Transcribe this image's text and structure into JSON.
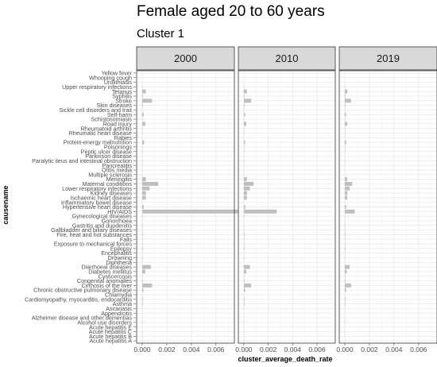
{
  "chart_data": {
    "type": "bar",
    "orientation": "horizontal",
    "title": "Female aged 20 to 60 years",
    "subtitle": "Cluster 1",
    "xlabel": "cluster_average_death_rate",
    "ylabel": "causename",
    "xlim": [
      -0.00045,
      0.0075
    ],
    "x_ticks": [
      0.0,
      0.002,
      0.004,
      0.006
    ],
    "x_tick_labels": [
      "0.000",
      "0.002",
      "0.004",
      "0.006"
    ],
    "grid": true,
    "legend": "none",
    "bar_color": "#bfbfbf",
    "facets": [
      "2000",
      "2010",
      "2019"
    ],
    "categories": [
      "Yellow fever",
      "Whooping cough",
      "Urolithiasis",
      "Upper respiratory infections",
      "Tetanus",
      "Syphilis",
      "Stroke",
      "Skin diseases",
      "Sickle cell disorders and trait",
      "Self-harm",
      "Schistosomiasis",
      "Road injury",
      "Rheumatoid arthritis",
      "Rheumatic heart disease",
      "Rabies",
      "Protein-energy malnutrition",
      "Poisonings",
      "Peptic ulcer disease",
      "Parkinson disease",
      "Paralytic ileus and intestinal obstruction",
      "Pancreatitis",
      "Otitis media",
      "Multiple sclerosis",
      "Meningitis",
      "Maternal conditions",
      "Lower respiratory infections",
      "Kidney diseases",
      "Ischaemic heart disease",
      "Inflammatory bowel disease",
      "Hypertensive heart disease",
      "HIV/AIDS",
      "Gynecological diseases",
      "Gonorrhoea",
      "Gastritis and duodenitis",
      "Gallbladder and biliary diseases",
      "Fire, heat and hot substances",
      "Falls",
      "Exposure to mechanical forces",
      "Epilepsy",
      "Encephalitis",
      "Drowning",
      "Diphtheria",
      "Diarrhoeal diseases",
      "Diabetes mellitus",
      "Cysticercosis",
      "Congenital anomalies",
      "Cirrhosis of the liver",
      "Chronic obstructive pulmonary disease",
      "Chlamydia",
      "Cardiomyopathy, myocarditis, endocarditis",
      "Asthma",
      "Ascariasis",
      "Appendicitis",
      "Alzheimer disease and other dementias",
      "Alcohol use disorders",
      "Acute hepatitis E",
      "Acute hepatitis C",
      "Acute hepatitis B",
      "Acute hepatitis A"
    ],
    "series": [
      {
        "name": "2000",
        "values": [
          0,
          0,
          0,
          2e-05,
          0.0003,
          5e-05,
          0.0008,
          5e-05,
          2e-05,
          0.00012,
          2e-05,
          0.00025,
          3e-05,
          3e-05,
          1e-05,
          0.00015,
          3e-05,
          3e-05,
          1e-05,
          3e-05,
          2e-05,
          1e-05,
          1e-05,
          0.0003,
          0.0013,
          0.0006,
          0.0003,
          0.0003,
          1e-05,
          0.00012,
          0.0078,
          3e-05,
          1e-05,
          3e-05,
          3e-05,
          5e-05,
          3e-05,
          3e-05,
          5e-05,
          2e-05,
          3e-05,
          1e-05,
          0.0007,
          0.00025,
          3e-05,
          5e-05,
          0.0008,
          0.0001,
          1e-05,
          5e-05,
          5e-05,
          1e-05,
          1e-05,
          1e-05,
          2e-05,
          1e-05,
          1e-05,
          2e-05,
          1e-05
        ]
      },
      {
        "name": "2010",
        "values": [
          0,
          0,
          0,
          2e-05,
          0.00025,
          5e-05,
          0.0006,
          5e-05,
          2e-05,
          0.0001,
          2e-05,
          0.0002,
          3e-05,
          3e-05,
          1e-05,
          0.0001,
          3e-05,
          3e-05,
          1e-05,
          3e-05,
          2e-05,
          1e-05,
          1e-05,
          0.00025,
          0.0008,
          0.0005,
          0.00025,
          0.00025,
          1e-05,
          0.0001,
          0.0027,
          3e-05,
          1e-05,
          3e-05,
          3e-05,
          5e-05,
          3e-05,
          3e-05,
          5e-05,
          2e-05,
          3e-05,
          1e-05,
          0.0005,
          0.0002,
          3e-05,
          5e-05,
          0.0006,
          0.0001,
          1e-05,
          5e-05,
          5e-05,
          1e-05,
          1e-05,
          1e-05,
          2e-05,
          1e-05,
          1e-05,
          2e-05,
          1e-05
        ]
      },
      {
        "name": "2019",
        "values": [
          0,
          0,
          0,
          2e-05,
          0.0002,
          5e-05,
          0.0005,
          5e-05,
          2e-05,
          0.0001,
          2e-05,
          0.0002,
          3e-05,
          3e-05,
          1e-05,
          0.0001,
          3e-05,
          3e-05,
          1e-05,
          3e-05,
          2e-05,
          1e-05,
          1e-05,
          0.0002,
          0.0006,
          0.0004,
          0.0002,
          0.0002,
          1e-05,
          0.0001,
          0.0008,
          3e-05,
          1e-05,
          3e-05,
          3e-05,
          5e-05,
          3e-05,
          3e-05,
          5e-05,
          2e-05,
          3e-05,
          1e-05,
          0.0004,
          0.00015,
          3e-05,
          5e-05,
          0.0005,
          0.0001,
          1e-05,
          5e-05,
          5e-05,
          1e-05,
          1e-05,
          1e-05,
          2e-05,
          1e-05,
          1e-05,
          2e-05,
          1e-05
        ]
      }
    ]
  }
}
